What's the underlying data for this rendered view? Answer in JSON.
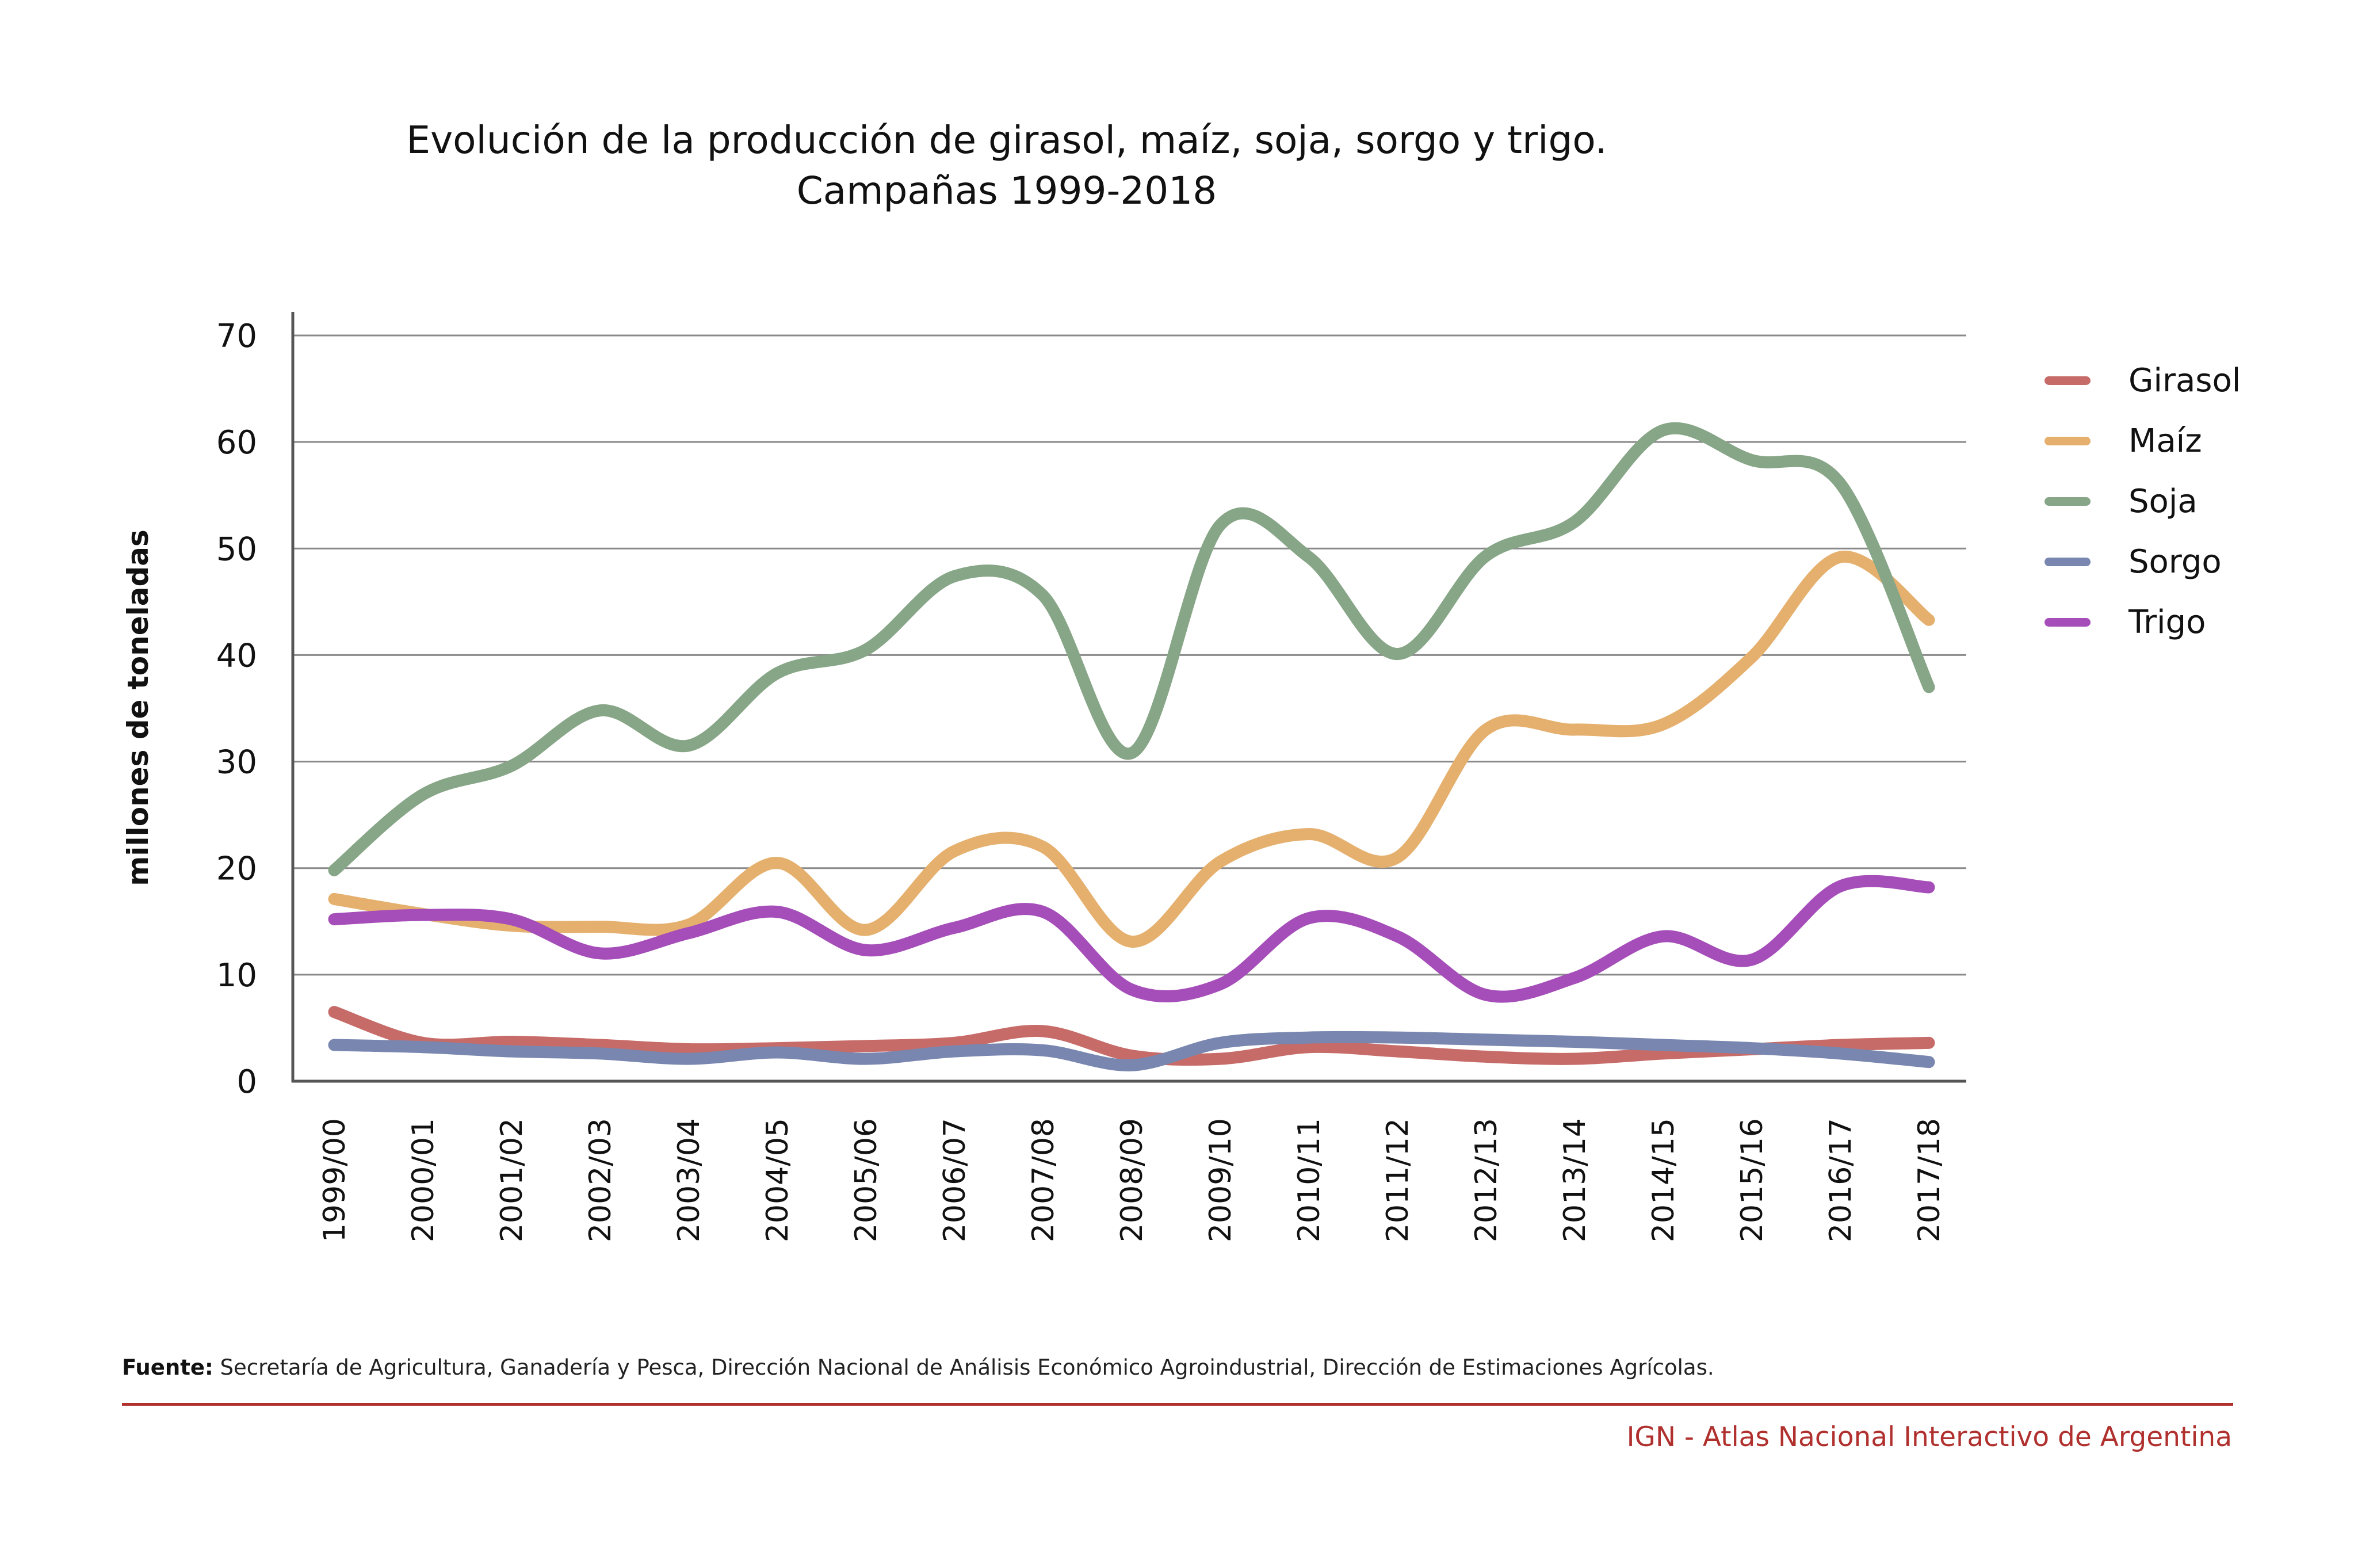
{
  "header": {
    "title_line1": "Evolución de la producción de girasol, maíz, soja, sorgo y trigo.",
    "title_line2": "Campañas 1999-2018"
  },
  "chart_data": {
    "type": "line",
    "title": "Evolución de la producción de girasol, maíz, soja, sorgo y trigo. Campañas 1999-2018",
    "xlabel": "",
    "ylabel": "millones de toneladas",
    "ylim": [
      0,
      70
    ],
    "yticks": [
      0,
      10,
      20,
      30,
      40,
      50,
      60,
      70
    ],
    "grid": true,
    "legend_position": "right",
    "smooth": true,
    "categories": [
      "1999/00",
      "2000/01",
      "2001/02",
      "2002/03",
      "2003/04",
      "2004/05",
      "2005/06",
      "2006/07",
      "2007/08",
      "2008/09",
      "2009/10",
      "2010/11",
      "2011/12",
      "2012/13",
      "2013/14",
      "2014/15",
      "2015/16",
      "2016/17",
      "2017/18"
    ],
    "series": [
      {
        "name": "Girasol",
        "color": "#C66B68",
        "values": [
          6.5,
          3.6,
          3.7,
          3.4,
          3.0,
          3.1,
          3.3,
          3.6,
          4.7,
          2.4,
          2.1,
          3.2,
          2.8,
          2.3,
          2.1,
          2.6,
          3.0,
          3.4,
          3.6
        ]
      },
      {
        "name": "Maíz",
        "color": "#E5B06E",
        "values": [
          17.1,
          15.7,
          14.6,
          14.5,
          14.7,
          20.5,
          14.2,
          21.6,
          22.0,
          13.1,
          20.6,
          23.2,
          21.0,
          33.0,
          33.0,
          33.5,
          39.8,
          49.2,
          43.3
        ]
      },
      {
        "name": "Soja",
        "color": "#87A587",
        "values": [
          19.8,
          26.9,
          29.6,
          34.8,
          31.5,
          38.3,
          40.5,
          47.4,
          45.6,
          30.8,
          52.2,
          49.2,
          40.1,
          49.3,
          52.5,
          61.1,
          58.3,
          56.1,
          37.0
        ]
      },
      {
        "name": "Sorgo",
        "color": "#7987B0",
        "values": [
          3.4,
          3.2,
          2.8,
          2.6,
          2.1,
          2.7,
          2.1,
          2.8,
          2.9,
          1.5,
          3.6,
          4.1,
          4.1,
          3.9,
          3.7,
          3.4,
          3.1,
          2.6,
          1.8
        ]
      },
      {
        "name": "Trigo",
        "color": "#A54DB8",
        "values": [
          15.2,
          15.6,
          15.2,
          12.0,
          13.9,
          15.9,
          12.3,
          14.4,
          15.9,
          8.6,
          9.1,
          15.3,
          13.6,
          8.1,
          9.7,
          13.6,
          11.4,
          18.3,
          18.2
        ]
      }
    ]
  },
  "footer": {
    "source_label": "Fuente:",
    "source_text": " Secretaría de Agricultura, Ganadería y Pesca, Dirección Nacional de Análisis Económico Agroindustrial, Dirección de Estimaciones Agrícolas.",
    "credit": "IGN - Atlas Nacional Interactivo de Argentina",
    "accent_color": "#B0302E"
  }
}
